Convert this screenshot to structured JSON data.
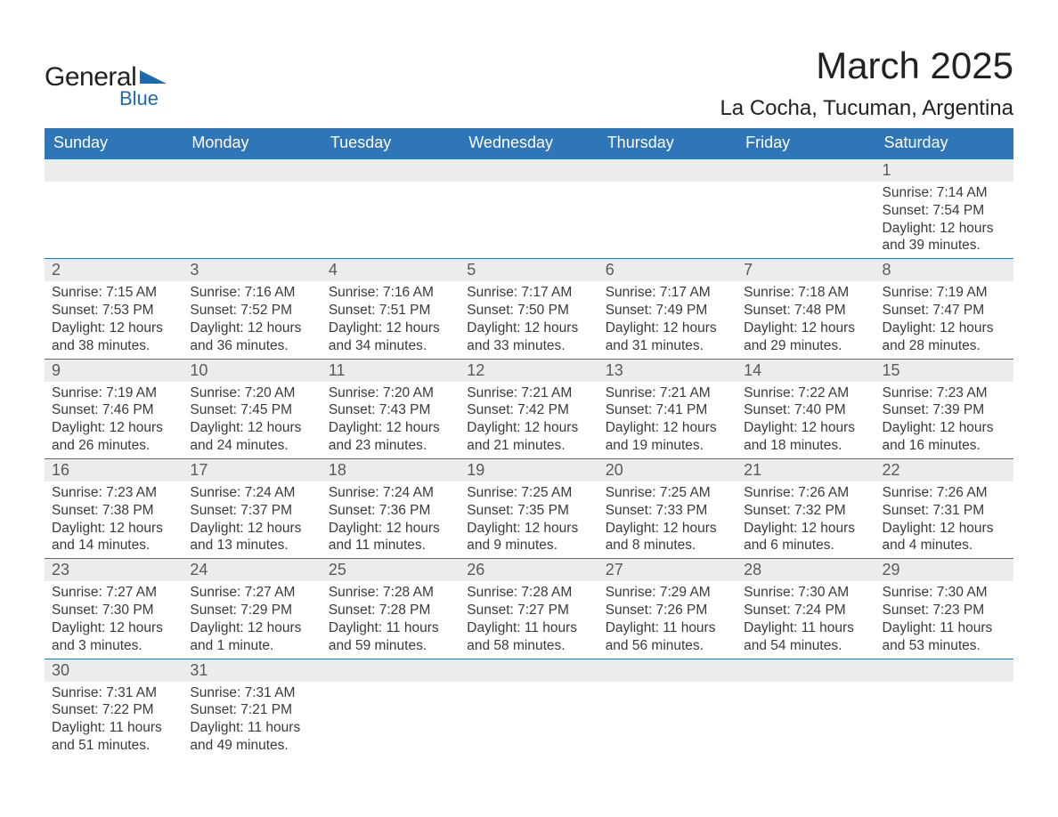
{
  "logo": {
    "word1": "General",
    "word2": "Blue",
    "shape_color": "#1a6ab3"
  },
  "title": "March 2025",
  "location": "La Cocha, Tucuman, Argentina",
  "colors": {
    "header_bg": "#2f76b8",
    "header_text": "#ffffff",
    "daynum_bg": "#ececec",
    "border": "#2f76b8",
    "text": "#3a3a3a",
    "page_bg": "#ffffff"
  },
  "day_headers": [
    "Sunday",
    "Monday",
    "Tuesday",
    "Wednesday",
    "Thursday",
    "Friday",
    "Saturday"
  ],
  "weeks": [
    [
      {
        "n": "",
        "sr": "",
        "ss": "",
        "dl": ""
      },
      {
        "n": "",
        "sr": "",
        "ss": "",
        "dl": ""
      },
      {
        "n": "",
        "sr": "",
        "ss": "",
        "dl": ""
      },
      {
        "n": "",
        "sr": "",
        "ss": "",
        "dl": ""
      },
      {
        "n": "",
        "sr": "",
        "ss": "",
        "dl": ""
      },
      {
        "n": "",
        "sr": "",
        "ss": "",
        "dl": ""
      },
      {
        "n": "1",
        "sr": "Sunrise: 7:14 AM",
        "ss": "Sunset: 7:54 PM",
        "dl": "Daylight: 12 hours and 39 minutes."
      }
    ],
    [
      {
        "n": "2",
        "sr": "Sunrise: 7:15 AM",
        "ss": "Sunset: 7:53 PM",
        "dl": "Daylight: 12 hours and 38 minutes."
      },
      {
        "n": "3",
        "sr": "Sunrise: 7:16 AM",
        "ss": "Sunset: 7:52 PM",
        "dl": "Daylight: 12 hours and 36 minutes."
      },
      {
        "n": "4",
        "sr": "Sunrise: 7:16 AM",
        "ss": "Sunset: 7:51 PM",
        "dl": "Daylight: 12 hours and 34 minutes."
      },
      {
        "n": "5",
        "sr": "Sunrise: 7:17 AM",
        "ss": "Sunset: 7:50 PM",
        "dl": "Daylight: 12 hours and 33 minutes."
      },
      {
        "n": "6",
        "sr": "Sunrise: 7:17 AM",
        "ss": "Sunset: 7:49 PM",
        "dl": "Daylight: 12 hours and 31 minutes."
      },
      {
        "n": "7",
        "sr": "Sunrise: 7:18 AM",
        "ss": "Sunset: 7:48 PM",
        "dl": "Daylight: 12 hours and 29 minutes."
      },
      {
        "n": "8",
        "sr": "Sunrise: 7:19 AM",
        "ss": "Sunset: 7:47 PM",
        "dl": "Daylight: 12 hours and 28 minutes."
      }
    ],
    [
      {
        "n": "9",
        "sr": "Sunrise: 7:19 AM",
        "ss": "Sunset: 7:46 PM",
        "dl": "Daylight: 12 hours and 26 minutes."
      },
      {
        "n": "10",
        "sr": "Sunrise: 7:20 AM",
        "ss": "Sunset: 7:45 PM",
        "dl": "Daylight: 12 hours and 24 minutes."
      },
      {
        "n": "11",
        "sr": "Sunrise: 7:20 AM",
        "ss": "Sunset: 7:43 PM",
        "dl": "Daylight: 12 hours and 23 minutes."
      },
      {
        "n": "12",
        "sr": "Sunrise: 7:21 AM",
        "ss": "Sunset: 7:42 PM",
        "dl": "Daylight: 12 hours and 21 minutes."
      },
      {
        "n": "13",
        "sr": "Sunrise: 7:21 AM",
        "ss": "Sunset: 7:41 PM",
        "dl": "Daylight: 12 hours and 19 minutes."
      },
      {
        "n": "14",
        "sr": "Sunrise: 7:22 AM",
        "ss": "Sunset: 7:40 PM",
        "dl": "Daylight: 12 hours and 18 minutes."
      },
      {
        "n": "15",
        "sr": "Sunrise: 7:23 AM",
        "ss": "Sunset: 7:39 PM",
        "dl": "Daylight: 12 hours and 16 minutes."
      }
    ],
    [
      {
        "n": "16",
        "sr": "Sunrise: 7:23 AM",
        "ss": "Sunset: 7:38 PM",
        "dl": "Daylight: 12 hours and 14 minutes."
      },
      {
        "n": "17",
        "sr": "Sunrise: 7:24 AM",
        "ss": "Sunset: 7:37 PM",
        "dl": "Daylight: 12 hours and 13 minutes."
      },
      {
        "n": "18",
        "sr": "Sunrise: 7:24 AM",
        "ss": "Sunset: 7:36 PM",
        "dl": "Daylight: 12 hours and 11 minutes."
      },
      {
        "n": "19",
        "sr": "Sunrise: 7:25 AM",
        "ss": "Sunset: 7:35 PM",
        "dl": "Daylight: 12 hours and 9 minutes."
      },
      {
        "n": "20",
        "sr": "Sunrise: 7:25 AM",
        "ss": "Sunset: 7:33 PM",
        "dl": "Daylight: 12 hours and 8 minutes."
      },
      {
        "n": "21",
        "sr": "Sunrise: 7:26 AM",
        "ss": "Sunset: 7:32 PM",
        "dl": "Daylight: 12 hours and 6 minutes."
      },
      {
        "n": "22",
        "sr": "Sunrise: 7:26 AM",
        "ss": "Sunset: 7:31 PM",
        "dl": "Daylight: 12 hours and 4 minutes."
      }
    ],
    [
      {
        "n": "23",
        "sr": "Sunrise: 7:27 AM",
        "ss": "Sunset: 7:30 PM",
        "dl": "Daylight: 12 hours and 3 minutes."
      },
      {
        "n": "24",
        "sr": "Sunrise: 7:27 AM",
        "ss": "Sunset: 7:29 PM",
        "dl": "Daylight: 12 hours and 1 minute."
      },
      {
        "n": "25",
        "sr": "Sunrise: 7:28 AM",
        "ss": "Sunset: 7:28 PM",
        "dl": "Daylight: 11 hours and 59 minutes."
      },
      {
        "n": "26",
        "sr": "Sunrise: 7:28 AM",
        "ss": "Sunset: 7:27 PM",
        "dl": "Daylight: 11 hours and 58 minutes."
      },
      {
        "n": "27",
        "sr": "Sunrise: 7:29 AM",
        "ss": "Sunset: 7:26 PM",
        "dl": "Daylight: 11 hours and 56 minutes."
      },
      {
        "n": "28",
        "sr": "Sunrise: 7:30 AM",
        "ss": "Sunset: 7:24 PM",
        "dl": "Daylight: 11 hours and 54 minutes."
      },
      {
        "n": "29",
        "sr": "Sunrise: 7:30 AM",
        "ss": "Sunset: 7:23 PM",
        "dl": "Daylight: 11 hours and 53 minutes."
      }
    ],
    [
      {
        "n": "30",
        "sr": "Sunrise: 7:31 AM",
        "ss": "Sunset: 7:22 PM",
        "dl": "Daylight: 11 hours and 51 minutes."
      },
      {
        "n": "31",
        "sr": "Sunrise: 7:31 AM",
        "ss": "Sunset: 7:21 PM",
        "dl": "Daylight: 11 hours and 49 minutes."
      },
      {
        "n": "",
        "sr": "",
        "ss": "",
        "dl": ""
      },
      {
        "n": "",
        "sr": "",
        "ss": "",
        "dl": ""
      },
      {
        "n": "",
        "sr": "",
        "ss": "",
        "dl": ""
      },
      {
        "n": "",
        "sr": "",
        "ss": "",
        "dl": ""
      },
      {
        "n": "",
        "sr": "",
        "ss": "",
        "dl": ""
      }
    ]
  ]
}
